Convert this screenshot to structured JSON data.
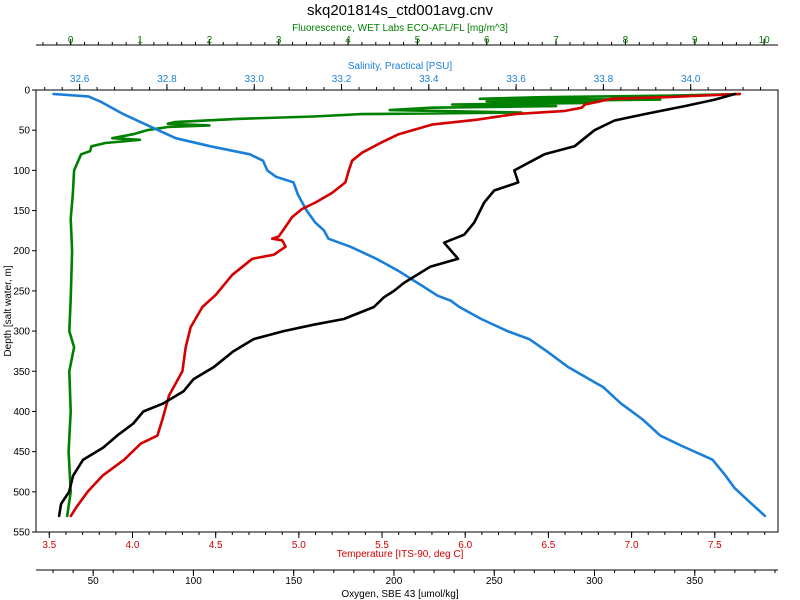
{
  "chart_data": {
    "type": "line",
    "title": "skq201814s_ctd001avg.cnv",
    "y_axis": {
      "label": "Depth [salt water, m]",
      "range": [
        0,
        550
      ],
      "inverted": true,
      "ticks": [
        0,
        50,
        100,
        150,
        200,
        250,
        300,
        350,
        400,
        450,
        500,
        550
      ]
    },
    "x_axes": [
      {
        "id": "fluor",
        "label": "Fluorescence, WET Labs ECO-AFL/FL [mg/m^3]",
        "position": "top-outer",
        "color": "#008000",
        "range": [
          -0.5,
          10.2
        ],
        "ticks": [
          0,
          1,
          2,
          3,
          4,
          5,
          6,
          7,
          8,
          9,
          10
        ],
        "tick_labels": [
          "0",
          "1",
          "2",
          "3",
          "4",
          "5",
          "6",
          "7",
          "8",
          "9",
          "10"
        ]
      },
      {
        "id": "sal",
        "label": "Salinity, Practical [PSU]",
        "position": "top-inner",
        "color": "#1a7fd8",
        "range": [
          32.5,
          34.2
        ],
        "ticks": [
          32.6,
          32.8,
          33.0,
          33.2,
          33.4,
          33.6,
          33.8,
          34.0
        ],
        "tick_labels": [
          "32.6",
          "32.8",
          "33.0",
          "33.2",
          "33.4",
          "33.6",
          "33.8",
          "34.0"
        ]
      },
      {
        "id": "temp",
        "label": "Temperature [ITS-90, deg C]",
        "position": "bottom-inner",
        "color": "#d40000",
        "range": [
          3.42,
          7.88
        ],
        "ticks": [
          3.5,
          4.0,
          4.5,
          5.0,
          5.5,
          6.0,
          6.5,
          7.0,
          7.5
        ],
        "tick_labels": [
          "3.5",
          "4.0",
          "4.5",
          "5.0",
          "5.5",
          "6.0",
          "6.5",
          "7.0",
          "7.5"
        ]
      },
      {
        "id": "oxy",
        "label": "Oxygen, SBE 43 [umol/kg]",
        "position": "bottom-outer",
        "color": "#000000",
        "range": [
          21.5,
          391.5
        ],
        "ticks": [
          50,
          100,
          150,
          200,
          250,
          300,
          350
        ],
        "tick_labels": [
          "50",
          "100",
          "150",
          "200",
          "250",
          "300",
          "350"
        ]
      }
    ],
    "series": [
      {
        "axis": "fluor",
        "color": "#008000",
        "points": [
          [
            9.65,
            5
          ],
          [
            8.7,
            7
          ],
          [
            6.8,
            9
          ],
          [
            5.9,
            11
          ],
          [
            8.5,
            12
          ],
          [
            6.0,
            14
          ],
          [
            7.5,
            16
          ],
          [
            5.5,
            18
          ],
          [
            7.0,
            20
          ],
          [
            5.2,
            22
          ],
          [
            4.6,
            25
          ],
          [
            6.5,
            28
          ],
          [
            4.2,
            30
          ],
          [
            3.5,
            33
          ],
          [
            2.4,
            36
          ],
          [
            1.5,
            40
          ],
          [
            1.4,
            42
          ],
          [
            2.0,
            44
          ],
          [
            1.4,
            46
          ],
          [
            1.1,
            50
          ],
          [
            0.9,
            55
          ],
          [
            0.6,
            60
          ],
          [
            1.0,
            62
          ],
          [
            0.5,
            66
          ],
          [
            0.3,
            70
          ],
          [
            0.28,
            76
          ],
          [
            0.15,
            80
          ],
          [
            0.1,
            90
          ],
          [
            0.05,
            100
          ],
          [
            0.03,
            130
          ],
          [
            0.0,
            160
          ],
          [
            0.02,
            200
          ],
          [
            0.0,
            260
          ],
          [
            -0.02,
            300
          ],
          [
            0.05,
            320
          ],
          [
            -0.02,
            350
          ],
          [
            0.0,
            400
          ],
          [
            -0.03,
            450
          ],
          [
            0.0,
            500
          ],
          [
            -0.05,
            530
          ]
        ]
      },
      {
        "axis": "sal",
        "color": "#1a7fd8",
        "points": [
          [
            32.54,
            5
          ],
          [
            32.62,
            8
          ],
          [
            32.65,
            15
          ],
          [
            32.7,
            30
          ],
          [
            32.76,
            45
          ],
          [
            32.82,
            60
          ],
          [
            32.9,
            70
          ],
          [
            32.99,
            80
          ],
          [
            33.02,
            88
          ],
          [
            33.03,
            100
          ],
          [
            33.05,
            108
          ],
          [
            33.09,
            115
          ],
          [
            33.1,
            130
          ],
          [
            33.12,
            150
          ],
          [
            33.14,
            165
          ],
          [
            33.16,
            175
          ],
          [
            33.17,
            185
          ],
          [
            33.22,
            195
          ],
          [
            33.28,
            210
          ],
          [
            33.33,
            225
          ],
          [
            33.38,
            242
          ],
          [
            33.42,
            256
          ],
          [
            33.45,
            262
          ],
          [
            33.47,
            270
          ],
          [
            33.52,
            285
          ],
          [
            33.58,
            300
          ],
          [
            33.63,
            310
          ],
          [
            33.67,
            325
          ],
          [
            33.72,
            345
          ],
          [
            33.8,
            370
          ],
          [
            33.84,
            390
          ],
          [
            33.89,
            410
          ],
          [
            33.93,
            430
          ],
          [
            33.98,
            443
          ],
          [
            34.05,
            460
          ],
          [
            34.08,
            480
          ],
          [
            34.1,
            495
          ],
          [
            34.13,
            510
          ],
          [
            34.15,
            520
          ],
          [
            34.17,
            530
          ]
        ]
      },
      {
        "axis": "temp",
        "color": "#d40000",
        "points": [
          [
            7.65,
            5
          ],
          [
            7.2,
            9
          ],
          [
            6.88,
            11
          ],
          [
            6.72,
            18
          ],
          [
            6.7,
            22
          ],
          [
            6.6,
            26
          ],
          [
            6.3,
            30
          ],
          [
            6.07,
            37
          ],
          [
            5.8,
            43
          ],
          [
            5.6,
            55
          ],
          [
            5.5,
            65
          ],
          [
            5.38,
            78
          ],
          [
            5.32,
            88
          ],
          [
            5.3,
            100
          ],
          [
            5.28,
            115
          ],
          [
            5.2,
            128
          ],
          [
            5.1,
            140
          ],
          [
            5.02,
            148
          ],
          [
            4.96,
            158
          ],
          [
            4.92,
            170
          ],
          [
            4.88,
            182
          ],
          [
            4.84,
            185
          ],
          [
            4.9,
            187
          ],
          [
            4.92,
            195
          ],
          [
            4.85,
            205
          ],
          [
            4.72,
            210
          ],
          [
            4.6,
            230
          ],
          [
            4.5,
            255
          ],
          [
            4.42,
            270
          ],
          [
            4.35,
            295
          ],
          [
            4.32,
            320
          ],
          [
            4.3,
            350
          ],
          [
            4.22,
            380
          ],
          [
            4.18,
            410
          ],
          [
            4.15,
            430
          ],
          [
            4.05,
            440
          ],
          [
            3.95,
            460
          ],
          [
            3.82,
            480
          ],
          [
            3.73,
            500
          ],
          [
            3.66,
            520
          ],
          [
            3.63,
            530
          ]
        ]
      },
      {
        "axis": "oxy",
        "color": "#000000",
        "points": [
          [
            370,
            5
          ],
          [
            360,
            12
          ],
          [
            345,
            20
          ],
          [
            325,
            30
          ],
          [
            310,
            38
          ],
          [
            300,
            50
          ],
          [
            290,
            70
          ],
          [
            275,
            80
          ],
          [
            260,
            100
          ],
          [
            262,
            115
          ],
          [
            250,
            125
          ],
          [
            245,
            140
          ],
          [
            240,
            165
          ],
          [
            235,
            180
          ],
          [
            225,
            190
          ],
          [
            232,
            210
          ],
          [
            218,
            220
          ],
          [
            205,
            240
          ],
          [
            200,
            250
          ],
          [
            195,
            258
          ],
          [
            190,
            270
          ],
          [
            175,
            285
          ],
          [
            160,
            292
          ],
          [
            145,
            300
          ],
          [
            130,
            310
          ],
          [
            120,
            325
          ],
          [
            110,
            345
          ],
          [
            100,
            360
          ],
          [
            95,
            375
          ],
          [
            85,
            390
          ],
          [
            75,
            400
          ],
          [
            70,
            415
          ],
          [
            62,
            430
          ],
          [
            55,
            445
          ],
          [
            45,
            460
          ],
          [
            40,
            480
          ],
          [
            38,
            500
          ],
          [
            34,
            515
          ],
          [
            33,
            530
          ]
        ]
      }
    ]
  }
}
